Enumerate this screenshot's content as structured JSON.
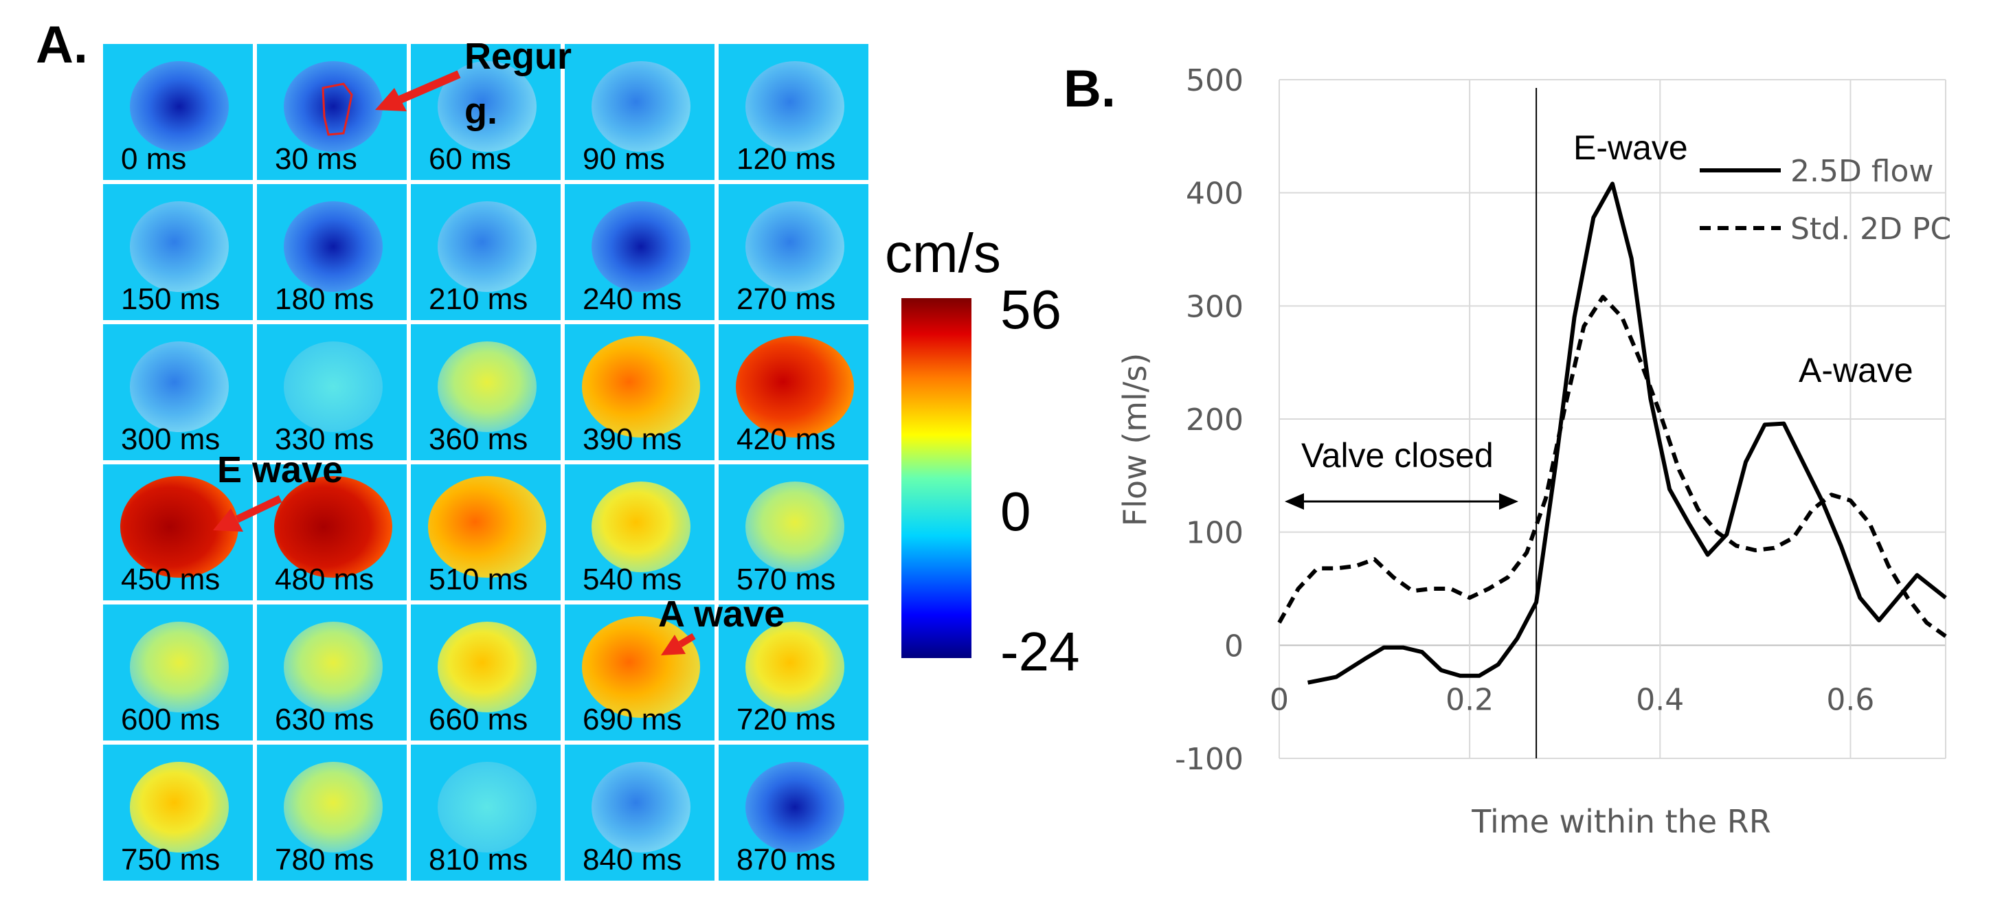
{
  "panel_a": {
    "label": "A.",
    "frames": [
      {
        "label": "0 ms",
        "kind": "neg"
      },
      {
        "label": "30 ms",
        "kind": "neg"
      },
      {
        "label": "60 ms",
        "kind": "mild"
      },
      {
        "label": "90 ms",
        "kind": "mild"
      },
      {
        "label": "120 ms",
        "kind": "mild"
      },
      {
        "label": "150 ms",
        "kind": "mild"
      },
      {
        "label": "180  ms",
        "kind": "neg"
      },
      {
        "label": "210 ms",
        "kind": "mild"
      },
      {
        "label": "240 ms",
        "kind": "neg"
      },
      {
        "label": "270 ms",
        "kind": "mild"
      },
      {
        "label": "300 ms",
        "kind": "mild"
      },
      {
        "label": "330 ms",
        "kind": "cyan"
      },
      {
        "label": "360 ms",
        "kind": "yellowgreen"
      },
      {
        "label": "390 ms",
        "kind": "orange"
      },
      {
        "label": "420 ms",
        "kind": "red"
      },
      {
        "label": "450 ms",
        "kind": "darkred"
      },
      {
        "label": "480  ms",
        "kind": "darkred"
      },
      {
        "label": "510 ms",
        "kind": "orange"
      },
      {
        "label": "540 ms",
        "kind": "yellow"
      },
      {
        "label": "570 ms",
        "kind": "yellowgreen"
      },
      {
        "label": "600 ms",
        "kind": "yellowgreen"
      },
      {
        "label": "630 ms",
        "kind": "yellowgreen"
      },
      {
        "label": "660 ms",
        "kind": "yellow"
      },
      {
        "label": "690 ms",
        "kind": "orange"
      },
      {
        "label": "720 ms",
        "kind": "yellow"
      },
      {
        "label": "750 ms",
        "kind": "yellow"
      },
      {
        "label": "780  ms",
        "kind": "yellowgreen"
      },
      {
        "label": "810 ms",
        "kind": "cyan"
      },
      {
        "label": "840 ms",
        "kind": "mild"
      },
      {
        "label": "870 ms",
        "kind": "neg"
      }
    ],
    "annotations": {
      "regurg_line1": "Regur",
      "regurg_line2": "g.",
      "e_wave": "E wave",
      "a_wave": "A wave"
    },
    "colorbar": {
      "unit": "cm/s",
      "max": "56",
      "mid": "0",
      "min": "-24"
    },
    "colors": {
      "background": "#14c8f5",
      "arrow": "#e8221c"
    }
  },
  "chart_data": {
    "panel_label": "B.",
    "type": "line",
    "xlabel": "Time within the RR",
    "ylabel": "Flow (ml/s)",
    "xlim": [
      0,
      0.7
    ],
    "ylim": [
      -100,
      500
    ],
    "xticks": [
      0,
      0.2,
      0.4,
      0.6
    ],
    "xtick_labels": [
      "0",
      "0.2",
      "0.4",
      "0.6"
    ],
    "yticks": [
      -100,
      0,
      100,
      200,
      300,
      400,
      500
    ],
    "ytick_labels": [
      "-100",
      "0",
      "100",
      "200",
      "300",
      "400",
      "500"
    ],
    "grid": true,
    "legend_position": "top-right",
    "vline_x": 0.27,
    "series": [
      {
        "name": "2.5D flow",
        "style": "solid",
        "x": [
          0.03,
          0.06,
          0.09,
          0.11,
          0.13,
          0.15,
          0.17,
          0.19,
          0.21,
          0.23,
          0.25,
          0.27,
          0.29,
          0.31,
          0.33,
          0.35,
          0.37,
          0.39,
          0.41,
          0.43,
          0.45,
          0.47,
          0.49,
          0.51,
          0.53,
          0.55,
          0.57,
          0.59,
          0.61,
          0.63,
          0.65,
          0.67,
          0.7
        ],
        "y": [
          -33,
          -28,
          -12,
          -2,
          -2,
          -6,
          -22,
          -27,
          -27,
          -17,
          6,
          38,
          158,
          290,
          378,
          408,
          342,
          218,
          138,
          108,
          80,
          98,
          162,
          195,
          196,
          162,
          128,
          88,
          42,
          22,
          42,
          62,
          42
        ]
      },
      {
        "name": "Std. 2D PC",
        "style": "dashed",
        "x": [
          0,
          0.02,
          0.04,
          0.06,
          0.08,
          0.1,
          0.12,
          0.14,
          0.16,
          0.18,
          0.2,
          0.22,
          0.24,
          0.26,
          0.28,
          0.3,
          0.32,
          0.34,
          0.36,
          0.38,
          0.4,
          0.42,
          0.44,
          0.46,
          0.48,
          0.5,
          0.52,
          0.54,
          0.56,
          0.58,
          0.6,
          0.62,
          0.64,
          0.66,
          0.68,
          0.7
        ],
        "y": [
          20,
          50,
          68,
          68,
          70,
          76,
          60,
          48,
          50,
          50,
          42,
          50,
          60,
          82,
          130,
          210,
          282,
          308,
          290,
          250,
          205,
          155,
          120,
          100,
          88,
          84,
          86,
          95,
          120,
          133,
          128,
          108,
          70,
          42,
          20,
          8
        ]
      }
    ],
    "annotations": {
      "e_wave": "E-wave",
      "a_wave": "A-wave",
      "valve_closed": "Valve closed"
    }
  }
}
